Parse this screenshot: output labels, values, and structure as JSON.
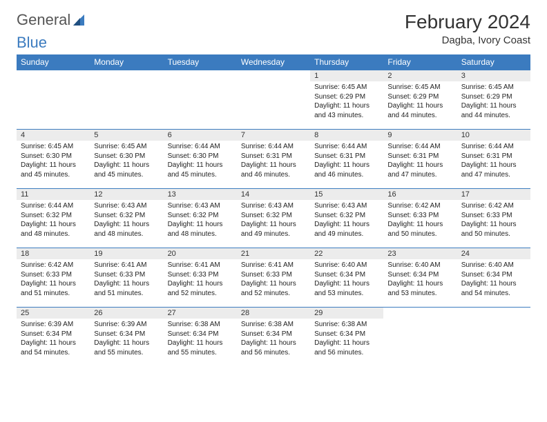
{
  "brand": {
    "part1": "General",
    "part2": "Blue"
  },
  "title": "February 2024",
  "location": "Dagba, Ivory Coast",
  "colors": {
    "accent": "#3b7bbf",
    "header_text": "#ffffff",
    "daynum_bg": "#ececec",
    "page_bg": "#ffffff",
    "text": "#222222"
  },
  "daynames": [
    "Sunday",
    "Monday",
    "Tuesday",
    "Wednesday",
    "Thursday",
    "Friday",
    "Saturday"
  ],
  "weeks": [
    [
      null,
      null,
      null,
      null,
      {
        "n": "1",
        "sr": "Sunrise: 6:45 AM",
        "ss": "Sunset: 6:29 PM",
        "d1": "Daylight: 11 hours",
        "d2": "and 43 minutes."
      },
      {
        "n": "2",
        "sr": "Sunrise: 6:45 AM",
        "ss": "Sunset: 6:29 PM",
        "d1": "Daylight: 11 hours",
        "d2": "and 44 minutes."
      },
      {
        "n": "3",
        "sr": "Sunrise: 6:45 AM",
        "ss": "Sunset: 6:29 PM",
        "d1": "Daylight: 11 hours",
        "d2": "and 44 minutes."
      }
    ],
    [
      {
        "n": "4",
        "sr": "Sunrise: 6:45 AM",
        "ss": "Sunset: 6:30 PM",
        "d1": "Daylight: 11 hours",
        "d2": "and 45 minutes."
      },
      {
        "n": "5",
        "sr": "Sunrise: 6:45 AM",
        "ss": "Sunset: 6:30 PM",
        "d1": "Daylight: 11 hours",
        "d2": "and 45 minutes."
      },
      {
        "n": "6",
        "sr": "Sunrise: 6:44 AM",
        "ss": "Sunset: 6:30 PM",
        "d1": "Daylight: 11 hours",
        "d2": "and 45 minutes."
      },
      {
        "n": "7",
        "sr": "Sunrise: 6:44 AM",
        "ss": "Sunset: 6:31 PM",
        "d1": "Daylight: 11 hours",
        "d2": "and 46 minutes."
      },
      {
        "n": "8",
        "sr": "Sunrise: 6:44 AM",
        "ss": "Sunset: 6:31 PM",
        "d1": "Daylight: 11 hours",
        "d2": "and 46 minutes."
      },
      {
        "n": "9",
        "sr": "Sunrise: 6:44 AM",
        "ss": "Sunset: 6:31 PM",
        "d1": "Daylight: 11 hours",
        "d2": "and 47 minutes."
      },
      {
        "n": "10",
        "sr": "Sunrise: 6:44 AM",
        "ss": "Sunset: 6:31 PM",
        "d1": "Daylight: 11 hours",
        "d2": "and 47 minutes."
      }
    ],
    [
      {
        "n": "11",
        "sr": "Sunrise: 6:44 AM",
        "ss": "Sunset: 6:32 PM",
        "d1": "Daylight: 11 hours",
        "d2": "and 48 minutes."
      },
      {
        "n": "12",
        "sr": "Sunrise: 6:43 AM",
        "ss": "Sunset: 6:32 PM",
        "d1": "Daylight: 11 hours",
        "d2": "and 48 minutes."
      },
      {
        "n": "13",
        "sr": "Sunrise: 6:43 AM",
        "ss": "Sunset: 6:32 PM",
        "d1": "Daylight: 11 hours",
        "d2": "and 48 minutes."
      },
      {
        "n": "14",
        "sr": "Sunrise: 6:43 AM",
        "ss": "Sunset: 6:32 PM",
        "d1": "Daylight: 11 hours",
        "d2": "and 49 minutes."
      },
      {
        "n": "15",
        "sr": "Sunrise: 6:43 AM",
        "ss": "Sunset: 6:32 PM",
        "d1": "Daylight: 11 hours",
        "d2": "and 49 minutes."
      },
      {
        "n": "16",
        "sr": "Sunrise: 6:42 AM",
        "ss": "Sunset: 6:33 PM",
        "d1": "Daylight: 11 hours",
        "d2": "and 50 minutes."
      },
      {
        "n": "17",
        "sr": "Sunrise: 6:42 AM",
        "ss": "Sunset: 6:33 PM",
        "d1": "Daylight: 11 hours",
        "d2": "and 50 minutes."
      }
    ],
    [
      {
        "n": "18",
        "sr": "Sunrise: 6:42 AM",
        "ss": "Sunset: 6:33 PM",
        "d1": "Daylight: 11 hours",
        "d2": "and 51 minutes."
      },
      {
        "n": "19",
        "sr": "Sunrise: 6:41 AM",
        "ss": "Sunset: 6:33 PM",
        "d1": "Daylight: 11 hours",
        "d2": "and 51 minutes."
      },
      {
        "n": "20",
        "sr": "Sunrise: 6:41 AM",
        "ss": "Sunset: 6:33 PM",
        "d1": "Daylight: 11 hours",
        "d2": "and 52 minutes."
      },
      {
        "n": "21",
        "sr": "Sunrise: 6:41 AM",
        "ss": "Sunset: 6:33 PM",
        "d1": "Daylight: 11 hours",
        "d2": "and 52 minutes."
      },
      {
        "n": "22",
        "sr": "Sunrise: 6:40 AM",
        "ss": "Sunset: 6:34 PM",
        "d1": "Daylight: 11 hours",
        "d2": "and 53 minutes."
      },
      {
        "n": "23",
        "sr": "Sunrise: 6:40 AM",
        "ss": "Sunset: 6:34 PM",
        "d1": "Daylight: 11 hours",
        "d2": "and 53 minutes."
      },
      {
        "n": "24",
        "sr": "Sunrise: 6:40 AM",
        "ss": "Sunset: 6:34 PM",
        "d1": "Daylight: 11 hours",
        "d2": "and 54 minutes."
      }
    ],
    [
      {
        "n": "25",
        "sr": "Sunrise: 6:39 AM",
        "ss": "Sunset: 6:34 PM",
        "d1": "Daylight: 11 hours",
        "d2": "and 54 minutes."
      },
      {
        "n": "26",
        "sr": "Sunrise: 6:39 AM",
        "ss": "Sunset: 6:34 PM",
        "d1": "Daylight: 11 hours",
        "d2": "and 55 minutes."
      },
      {
        "n": "27",
        "sr": "Sunrise: 6:38 AM",
        "ss": "Sunset: 6:34 PM",
        "d1": "Daylight: 11 hours",
        "d2": "and 55 minutes."
      },
      {
        "n": "28",
        "sr": "Sunrise: 6:38 AM",
        "ss": "Sunset: 6:34 PM",
        "d1": "Daylight: 11 hours",
        "d2": "and 56 minutes."
      },
      {
        "n": "29",
        "sr": "Sunrise: 6:38 AM",
        "ss": "Sunset: 6:34 PM",
        "d1": "Daylight: 11 hours",
        "d2": "and 56 minutes."
      },
      null,
      null
    ]
  ]
}
